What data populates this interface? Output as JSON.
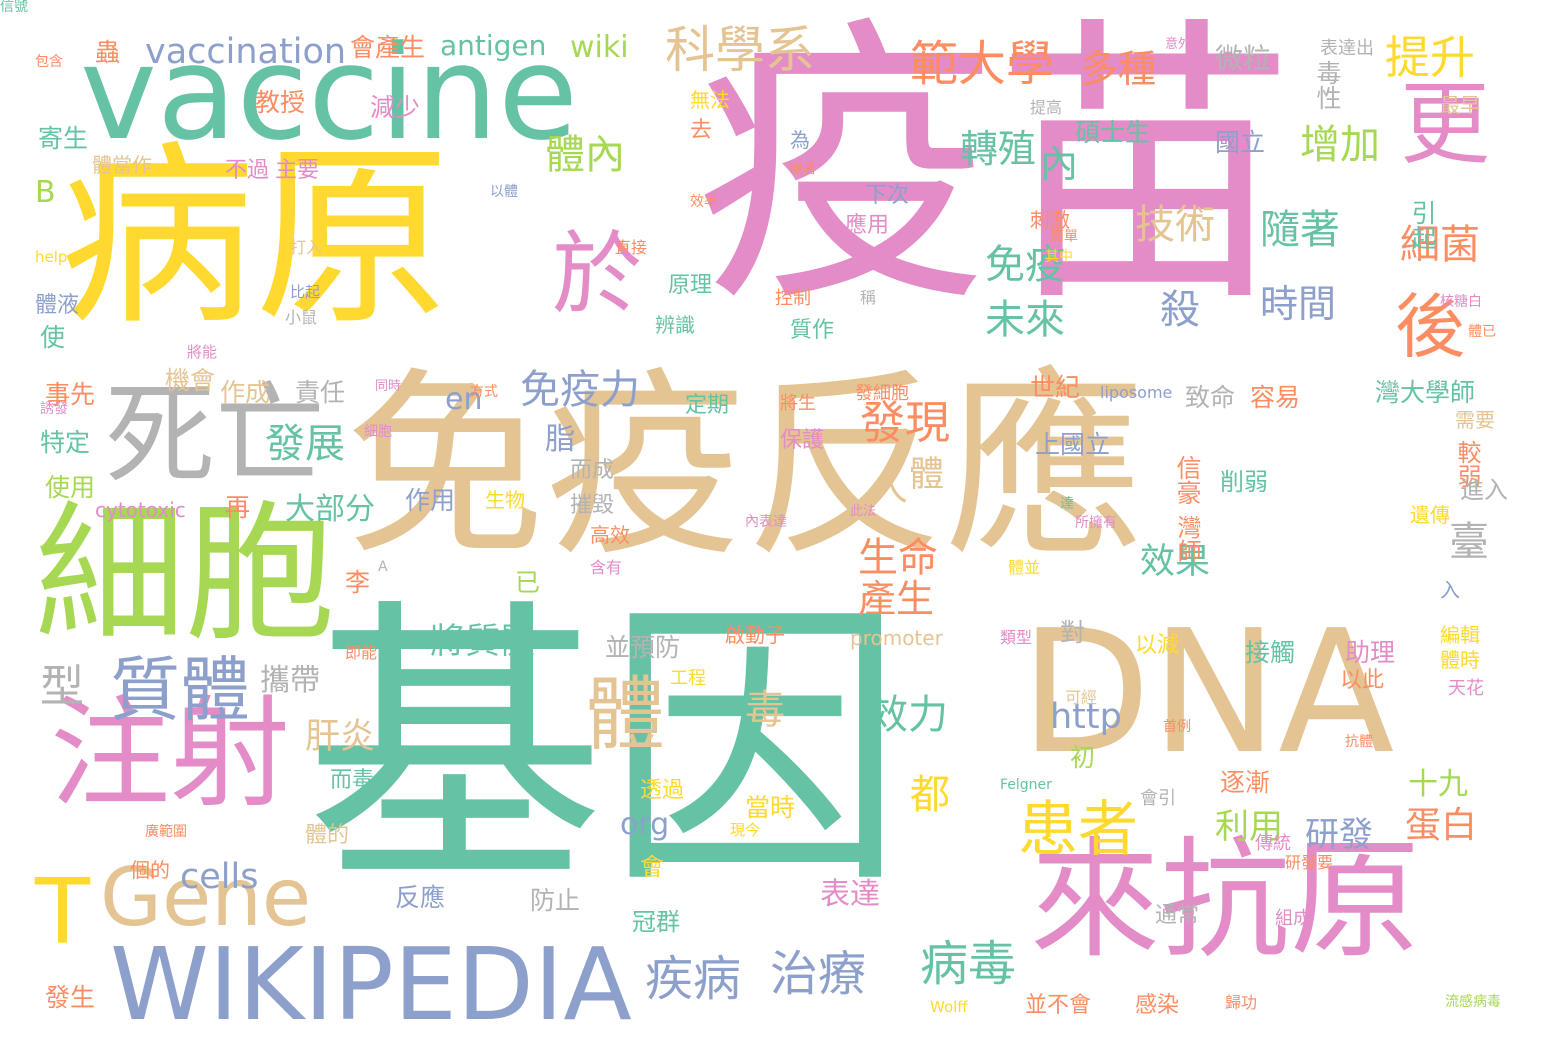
{
  "palette": {
    "pink": "#e38cc7",
    "green": "#66c2a5",
    "tan": "#e5c494",
    "yellow": "#ffd92f",
    "lime": "#a6d854",
    "gray": "#b3b3b3",
    "blue": "#8da0cb",
    "orange": "#fc8d62"
  },
  "words": [
    {
      "text": "疫苗",
      "color": "pink"
    },
    {
      "text": "基因",
      "color": "green"
    },
    {
      "text": "免疫反應",
      "color": "tan"
    },
    {
      "text": "病原",
      "color": "yellow"
    },
    {
      "text": "vaccine",
      "color": "green"
    },
    {
      "text": "DNA",
      "color": "tan"
    },
    {
      "text": "細胞",
      "color": "lime"
    },
    {
      "text": "來抗原",
      "color": "pink"
    },
    {
      "text": "注射",
      "color": "pink"
    },
    {
      "text": "WIKIPEDIA",
      "color": "blue"
    },
    {
      "text": "死亡",
      "color": "gray"
    },
    {
      "text": "Gene",
      "color": "tan"
    },
    {
      "text": "T",
      "color": "yellow"
    },
    {
      "text": "於",
      "color": "pink"
    },
    {
      "text": "更",
      "color": "pink"
    },
    {
      "text": "後",
      "color": "orange"
    },
    {
      "text": "質體",
      "color": "blue"
    },
    {
      "text": "體",
      "color": "tan"
    },
    {
      "text": "患者",
      "color": "yellow"
    },
    {
      "text": "治療",
      "color": "blue"
    },
    {
      "text": "疾病",
      "color": "blue"
    },
    {
      "text": "病毒",
      "color": "green"
    },
    {
      "text": "科學系",
      "color": "tan"
    },
    {
      "text": "範大學",
      "color": "orange"
    },
    {
      "text": "多種",
      "color": "orange"
    },
    {
      "text": "提升",
      "color": "yellow"
    },
    {
      "text": "體內",
      "color": "lime"
    },
    {
      "text": "發現",
      "color": "orange"
    },
    {
      "text": "免疫力",
      "color": "blue"
    },
    {
      "text": "未來",
      "color": "green"
    },
    {
      "text": "免疫",
      "color": "green"
    },
    {
      "text": "細菌",
      "color": "orange"
    },
    {
      "text": "增加",
      "color": "lime"
    },
    {
      "text": "技術",
      "color": "tan"
    },
    {
      "text": "隨著",
      "color": "green"
    },
    {
      "text": "時間",
      "color": "blue"
    },
    {
      "text": "殺",
      "color": "blue"
    },
    {
      "text": "轉殖",
      "color": "green"
    },
    {
      "text": "內",
      "color": "green"
    },
    {
      "text": "生命",
      "color": "orange"
    },
    {
      "text": "產生",
      "color": "orange"
    },
    {
      "text": "人",
      "color": "tan"
    },
    {
      "text": "體",
      "color": "tan"
    },
    {
      "text": "發展",
      "color": "green"
    },
    {
      "text": "將質體",
      "color": "green"
    },
    {
      "text": "攜帶",
      "color": "gray"
    },
    {
      "text": "型",
      "color": "gray"
    },
    {
      "text": "肝炎",
      "color": "tan"
    },
    {
      "text": "毒",
      "color": "tan"
    },
    {
      "text": "效力",
      "color": "green"
    },
    {
      "text": "都",
      "color": "yellow"
    },
    {
      "text": "http",
      "color": "blue"
    },
    {
      "text": "org",
      "color": "blue"
    },
    {
      "text": "cells",
      "color": "blue"
    },
    {
      "text": "研發",
      "color": "blue"
    },
    {
      "text": "蛋白",
      "color": "orange"
    },
    {
      "text": "利用",
      "color": "lime"
    },
    {
      "text": "十九",
      "color": "lime"
    },
    {
      "text": "表達",
      "color": "pink"
    },
    {
      "text": "效果",
      "color": "green"
    },
    {
      "text": "臺",
      "color": "gray"
    },
    {
      "text": "大部分",
      "color": "green"
    },
    {
      "text": "vaccination",
      "color": "blue"
    },
    {
      "text": "antigen",
      "color": "green"
    },
    {
      "text": "wiki",
      "color": "lime"
    },
    {
      "text": "en",
      "color": "blue"
    },
    {
      "text": "脂",
      "color": "blue"
    },
    {
      "text": "微粒",
      "color": "gray"
    },
    {
      "text": "會產生",
      "color": "orange"
    },
    {
      "text": "毒性",
      "color": "gray"
    },
    {
      "text": "引起",
      "color": "green"
    },
    {
      "text": "B",
      "color": "lime"
    },
    {
      "text": "寄生",
      "color": "green"
    },
    {
      "text": "教授",
      "color": "orange"
    },
    {
      "text": "減少",
      "color": "pink"
    },
    {
      "text": "蟲",
      "color": "orange"
    },
    {
      "text": "碩士生",
      "color": "green"
    },
    {
      "text": "國立",
      "color": "blue"
    },
    {
      "text": "世紀",
      "color": "orange"
    },
    {
      "text": "上國立",
      "color": "blue"
    },
    {
      "text": "灣大學師",
      "color": "green"
    },
    {
      "text": "致命",
      "color": "gray"
    },
    {
      "text": "容易",
      "color": "orange"
    },
    {
      "text": "信豪",
      "color": "orange"
    },
    {
      "text": "削弱",
      "color": "green"
    },
    {
      "text": "灣師",
      "color": "orange"
    },
    {
      "text": "較弱",
      "color": "orange"
    },
    {
      "text": "進入",
      "color": "gray"
    },
    {
      "text": "助理",
      "color": "pink"
    },
    {
      "text": "接觸",
      "color": "green"
    },
    {
      "text": "以此",
      "color": "orange"
    },
    {
      "text": "逐漸",
      "color": "orange"
    },
    {
      "text": "並預防",
      "color": "gray"
    },
    {
      "text": "已",
      "color": "lime"
    },
    {
      "text": "對",
      "color": "gray"
    },
    {
      "text": "以減",
      "color": "yellow"
    },
    {
      "text": "防止",
      "color": "gray"
    },
    {
      "text": "冠群",
      "color": "green"
    },
    {
      "text": "反應",
      "color": "blue"
    },
    {
      "text": "李",
      "color": "orange"
    },
    {
      "text": "再",
      "color": "orange"
    },
    {
      "text": "作用",
      "color": "blue"
    },
    {
      "text": "生物",
      "color": "yellow"
    },
    {
      "text": "摧毀",
      "color": "gray"
    },
    {
      "text": "而成",
      "color": "gray"
    },
    {
      "text": "責任",
      "color": "gray"
    },
    {
      "text": "作成",
      "color": "tan"
    },
    {
      "text": "機會",
      "color": "tan"
    },
    {
      "text": "事先",
      "color": "orange"
    },
    {
      "text": "特定",
      "color": "green"
    },
    {
      "text": "使用",
      "color": "lime"
    },
    {
      "text": "使",
      "color": "green"
    },
    {
      "text": "體液",
      "color": "blue"
    },
    {
      "text": "發生",
      "color": "orange"
    },
    {
      "text": "cytotoxic",
      "color": "pink"
    },
    {
      "text": "原理",
      "color": "green"
    },
    {
      "text": "應用",
      "color": "pink"
    },
    {
      "text": "下次",
      "color": "blue"
    },
    {
      "text": "刺激",
      "color": "orange"
    },
    {
      "text": "質作",
      "color": "green"
    },
    {
      "text": "控制",
      "color": "orange"
    },
    {
      "text": "辨識",
      "color": "green"
    },
    {
      "text": "定期",
      "color": "green"
    },
    {
      "text": "保護",
      "color": "pink"
    },
    {
      "text": "遺傳",
      "color": "yellow"
    },
    {
      "text": "需要",
      "color": "tan"
    },
    {
      "text": "最早",
      "color": "tan"
    },
    {
      "text": "編輯",
      "color": "yellow"
    },
    {
      "text": "體時",
      "color": "yellow"
    },
    {
      "text": "天花",
      "color": "pink"
    },
    {
      "text": "表達出",
      "color": "gray"
    },
    {
      "text": "不過",
      "color": "pink"
    },
    {
      "text": "主要",
      "color": "pink"
    },
    {
      "text": "體當作",
      "color": "tan"
    },
    {
      "text": "為",
      "color": "blue"
    },
    {
      "text": "無法",
      "color": "yellow"
    },
    {
      "text": "去",
      "color": "orange"
    },
    {
      "text": "promoter",
      "color": "tan"
    },
    {
      "text": "Felgner",
      "color": "green"
    },
    {
      "text": "liposome",
      "color": "blue"
    },
    {
      "text": "helper",
      "color": "yellow"
    },
    {
      "text": "Wolff",
      "color": "yellow"
    },
    {
      "text": "工程",
      "color": "yellow"
    },
    {
      "text": "可經",
      "color": "tan"
    },
    {
      "text": "當時",
      "color": "yellow"
    },
    {
      "text": "而毒",
      "color": "green"
    },
    {
      "text": "體的",
      "color": "tan"
    },
    {
      "text": "初",
      "color": "lime"
    },
    {
      "text": "透過",
      "color": "yellow"
    },
    {
      "text": "會引",
      "color": "gray"
    },
    {
      "text": "感染",
      "color": "orange"
    },
    {
      "text": "並不會",
      "color": "orange"
    },
    {
      "text": "通常",
      "color": "gray"
    },
    {
      "text": "啟動子",
      "color": "orange"
    },
    {
      "text": "發細胞",
      "color": "orange"
    },
    {
      "text": "將生",
      "color": "orange"
    },
    {
      "text": "類型",
      "color": "pink"
    },
    {
      "text": "會",
      "color": "yellow"
    },
    {
      "text": "組成",
      "color": "pink"
    },
    {
      "text": "歸功",
      "color": "orange"
    },
    {
      "text": "流感病毒",
      "color": "lime"
    },
    {
      "text": "研發要",
      "color": "orange"
    },
    {
      "text": "傳統",
      "color": "pink"
    },
    {
      "text": "抗體",
      "color": "orange"
    },
    {
      "text": "首例",
      "color": "orange"
    },
    {
      "text": "入",
      "color": "blue"
    },
    {
      "text": "體並",
      "color": "yellow"
    },
    {
      "text": "達",
      "color": "green"
    },
    {
      "text": "所擁有",
      "color": "pink"
    },
    {
      "text": "此法",
      "color": "pink"
    },
    {
      "text": "內表達",
      "color": "pink"
    },
    {
      "text": "高效",
      "color": "orange"
    },
    {
      "text": "A",
      "color": "gray"
    },
    {
      "text": "含有",
      "color": "pink"
    },
    {
      "text": "即能",
      "color": "orange"
    },
    {
      "text": "比起",
      "color": "blue"
    },
    {
      "text": "稱",
      "color": "gray"
    },
    {
      "text": "提高",
      "color": "gray"
    },
    {
      "text": "直接",
      "color": "orange"
    },
    {
      "text": "打入",
      "color": "tan"
    },
    {
      "text": "小鼠",
      "color": "gray"
    },
    {
      "text": "將能",
      "color": "pink"
    },
    {
      "text": "同時",
      "color": "pink"
    },
    {
      "text": "方式",
      "color": "orange"
    },
    {
      "text": "誘發",
      "color": "pink"
    },
    {
      "text": "廣範圍",
      "color": "orange"
    },
    {
      "text": "個的",
      "color": "orange"
    },
    {
      "text": "現今",
      "color": "yellow"
    },
    {
      "text": "效率",
      "color": "orange"
    },
    {
      "text": "以體",
      "color": "blue"
    },
    {
      "text": "核糖白",
      "color": "pink"
    },
    {
      "text": "體已",
      "color": "orange"
    },
    {
      "text": "意外",
      "color": "pink"
    },
    {
      "text": "包含",
      "color": "orange"
    },
    {
      "text": "暗著",
      "color": "orange"
    },
    {
      "text": "簡單",
      "color": "orange"
    },
    {
      "text": "其中",
      "color": "yellow"
    },
    {
      "text": "細胞",
      "color": "pink"
    },
    {
      "text": "信號",
      "color": "green"
    }
  ]
}
